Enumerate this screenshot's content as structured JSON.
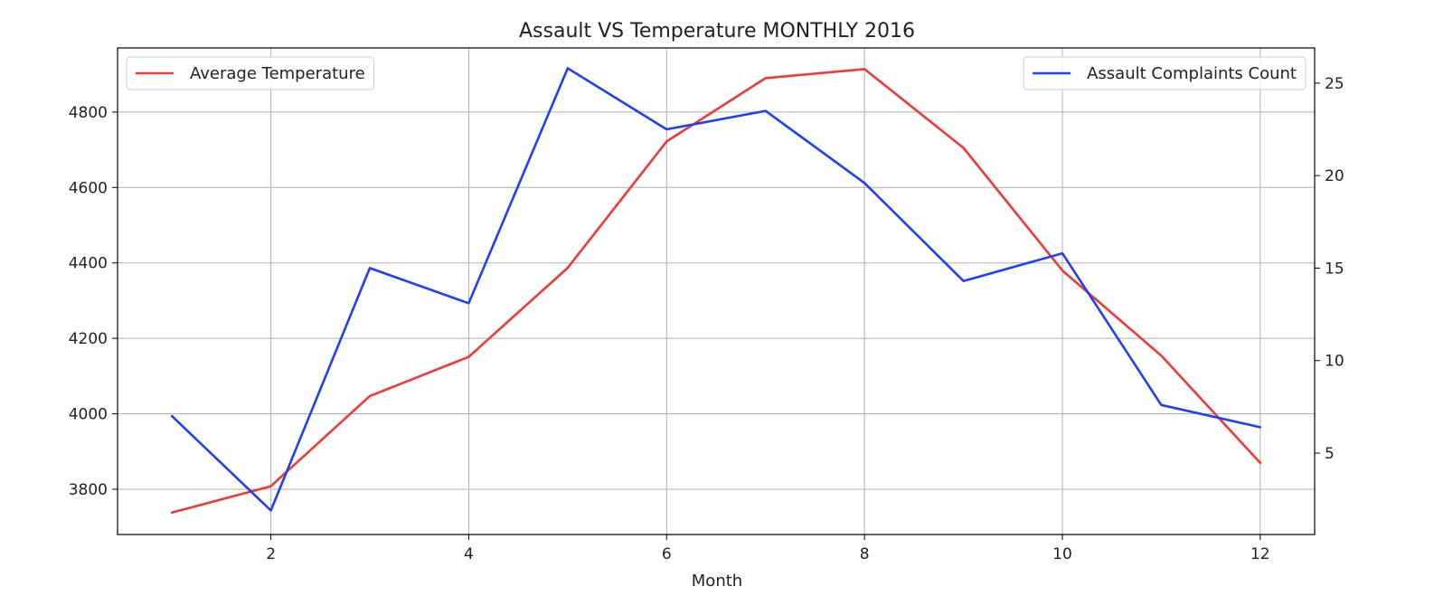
{
  "chart_data": {
    "type": "line",
    "title": "Assault VS Temperature MONTHLY 2016",
    "xlabel": "Month",
    "x": [
      1,
      2,
      3,
      4,
      5,
      6,
      7,
      8,
      9,
      10,
      11,
      12
    ],
    "xticks": [
      2,
      4,
      6,
      8,
      10,
      12
    ],
    "xlim": [
      0.45,
      12.55
    ],
    "grid": true,
    "left_axis": {
      "label": "",
      "ylim": [
        3680,
        4970
      ],
      "ticks": [
        3800,
        4000,
        4200,
        4400,
        4600,
        4800
      ]
    },
    "right_axis": {
      "label": "",
      "ylim": [
        0.6,
        26.9
      ],
      "ticks": [
        5,
        10,
        15,
        20,
        25
      ]
    },
    "series": [
      {
        "name": "Average Temperature",
        "axis": "left",
        "color": "#ee3a37",
        "legend_position": "upper-left",
        "values": [
          3738,
          3808,
          4047,
          4151,
          4387,
          4722,
          4890,
          4914,
          4705,
          4380,
          4154,
          3870
        ]
      },
      {
        "name": "Assault Complaints Count",
        "axis": "right",
        "color": "#1f3ff5",
        "legend_position": "upper-right",
        "values": [
          7.0,
          1.9,
          15.0,
          13.1,
          25.8,
          22.5,
          23.5,
          19.6,
          14.3,
          15.8,
          7.6,
          6.4
        ]
      }
    ]
  }
}
